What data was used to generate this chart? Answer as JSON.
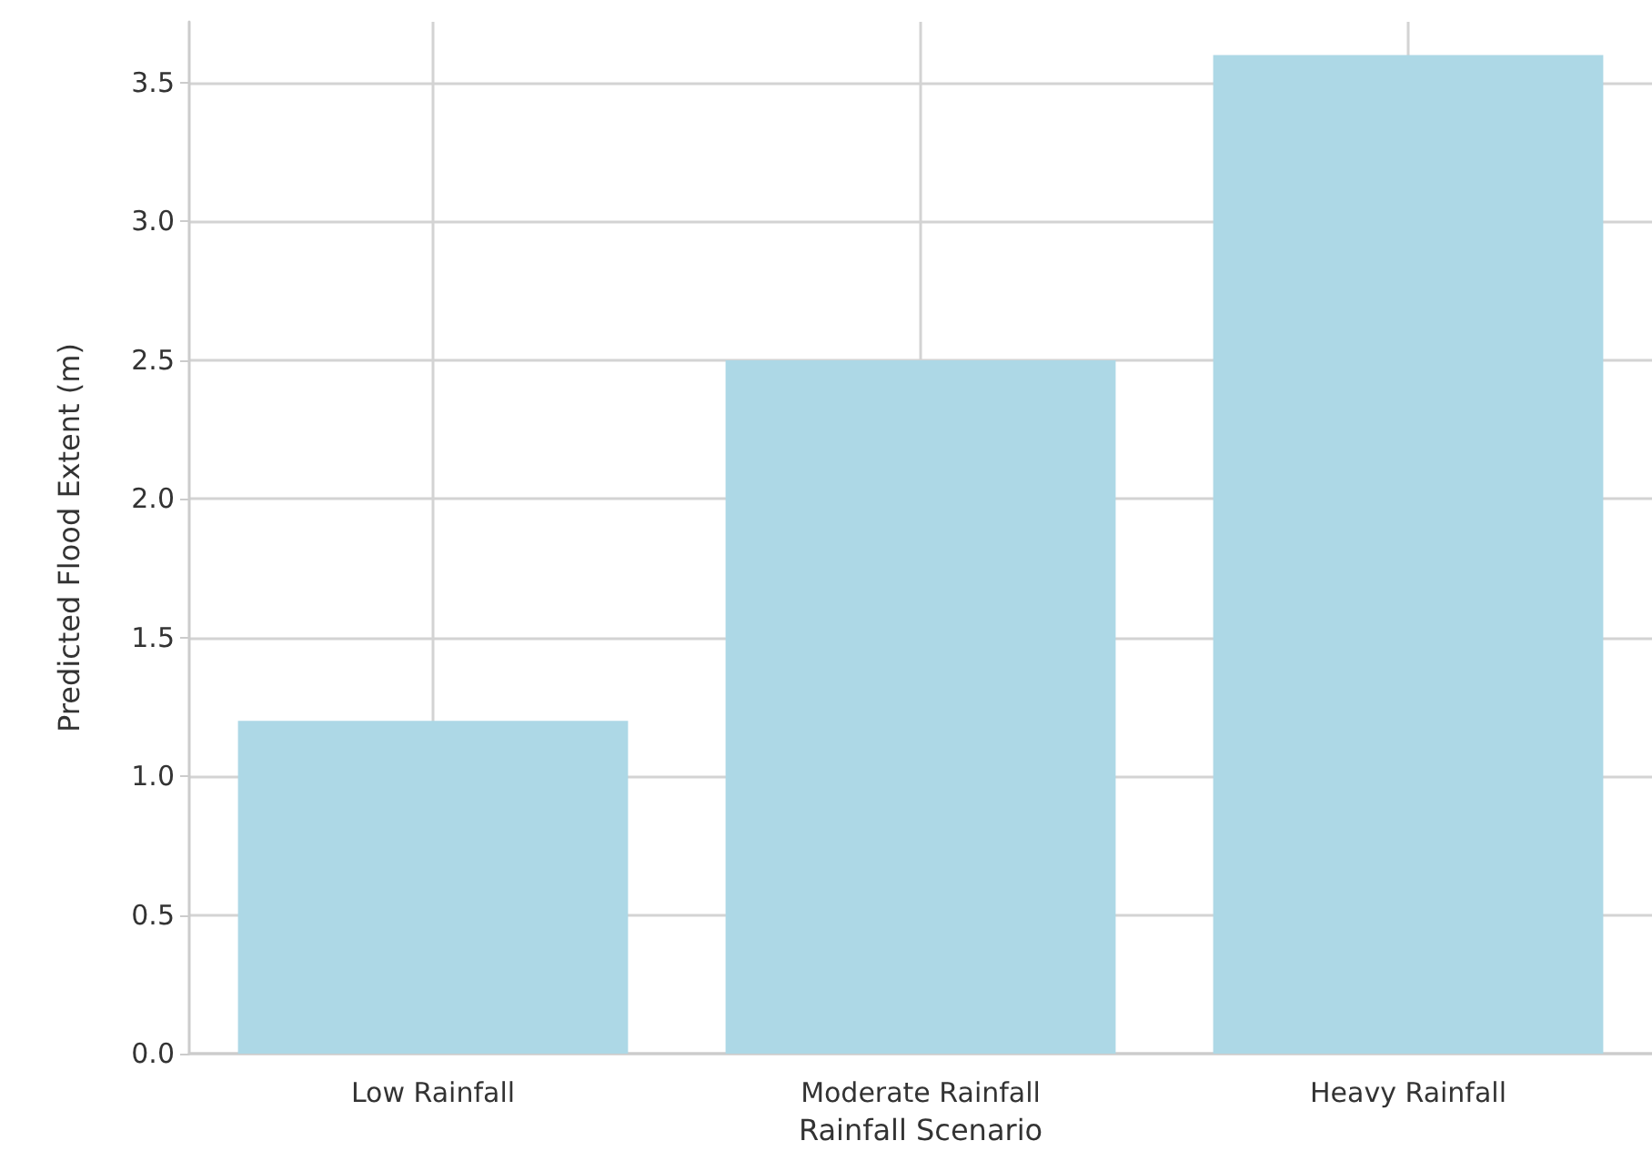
{
  "chart_data": {
    "type": "bar",
    "xlabel": "Rainfall Scenario",
    "ylabel": "Predicted Flood Extent (m)",
    "categories": [
      "Low Rainfall",
      "Moderate Rainfall",
      "Heavy Rainfall"
    ],
    "values": [
      1.2,
      2.5,
      3.6
    ],
    "color": "#add8e6",
    "ylim": [
      0,
      3.72
    ],
    "yticks": [
      {
        "value": 0,
        "label": "0.0"
      },
      {
        "value": 0.5,
        "label": "0.5"
      },
      {
        "value": 1,
        "label": "1.0"
      },
      {
        "value": 1.5,
        "label": "1.5"
      },
      {
        "value": 2,
        "label": "2.0"
      },
      {
        "value": 2.5,
        "label": "2.5"
      },
      {
        "value": 3,
        "label": "3.0"
      },
      {
        "value": 3.5,
        "label": "3.5"
      }
    ],
    "grid": true
  }
}
